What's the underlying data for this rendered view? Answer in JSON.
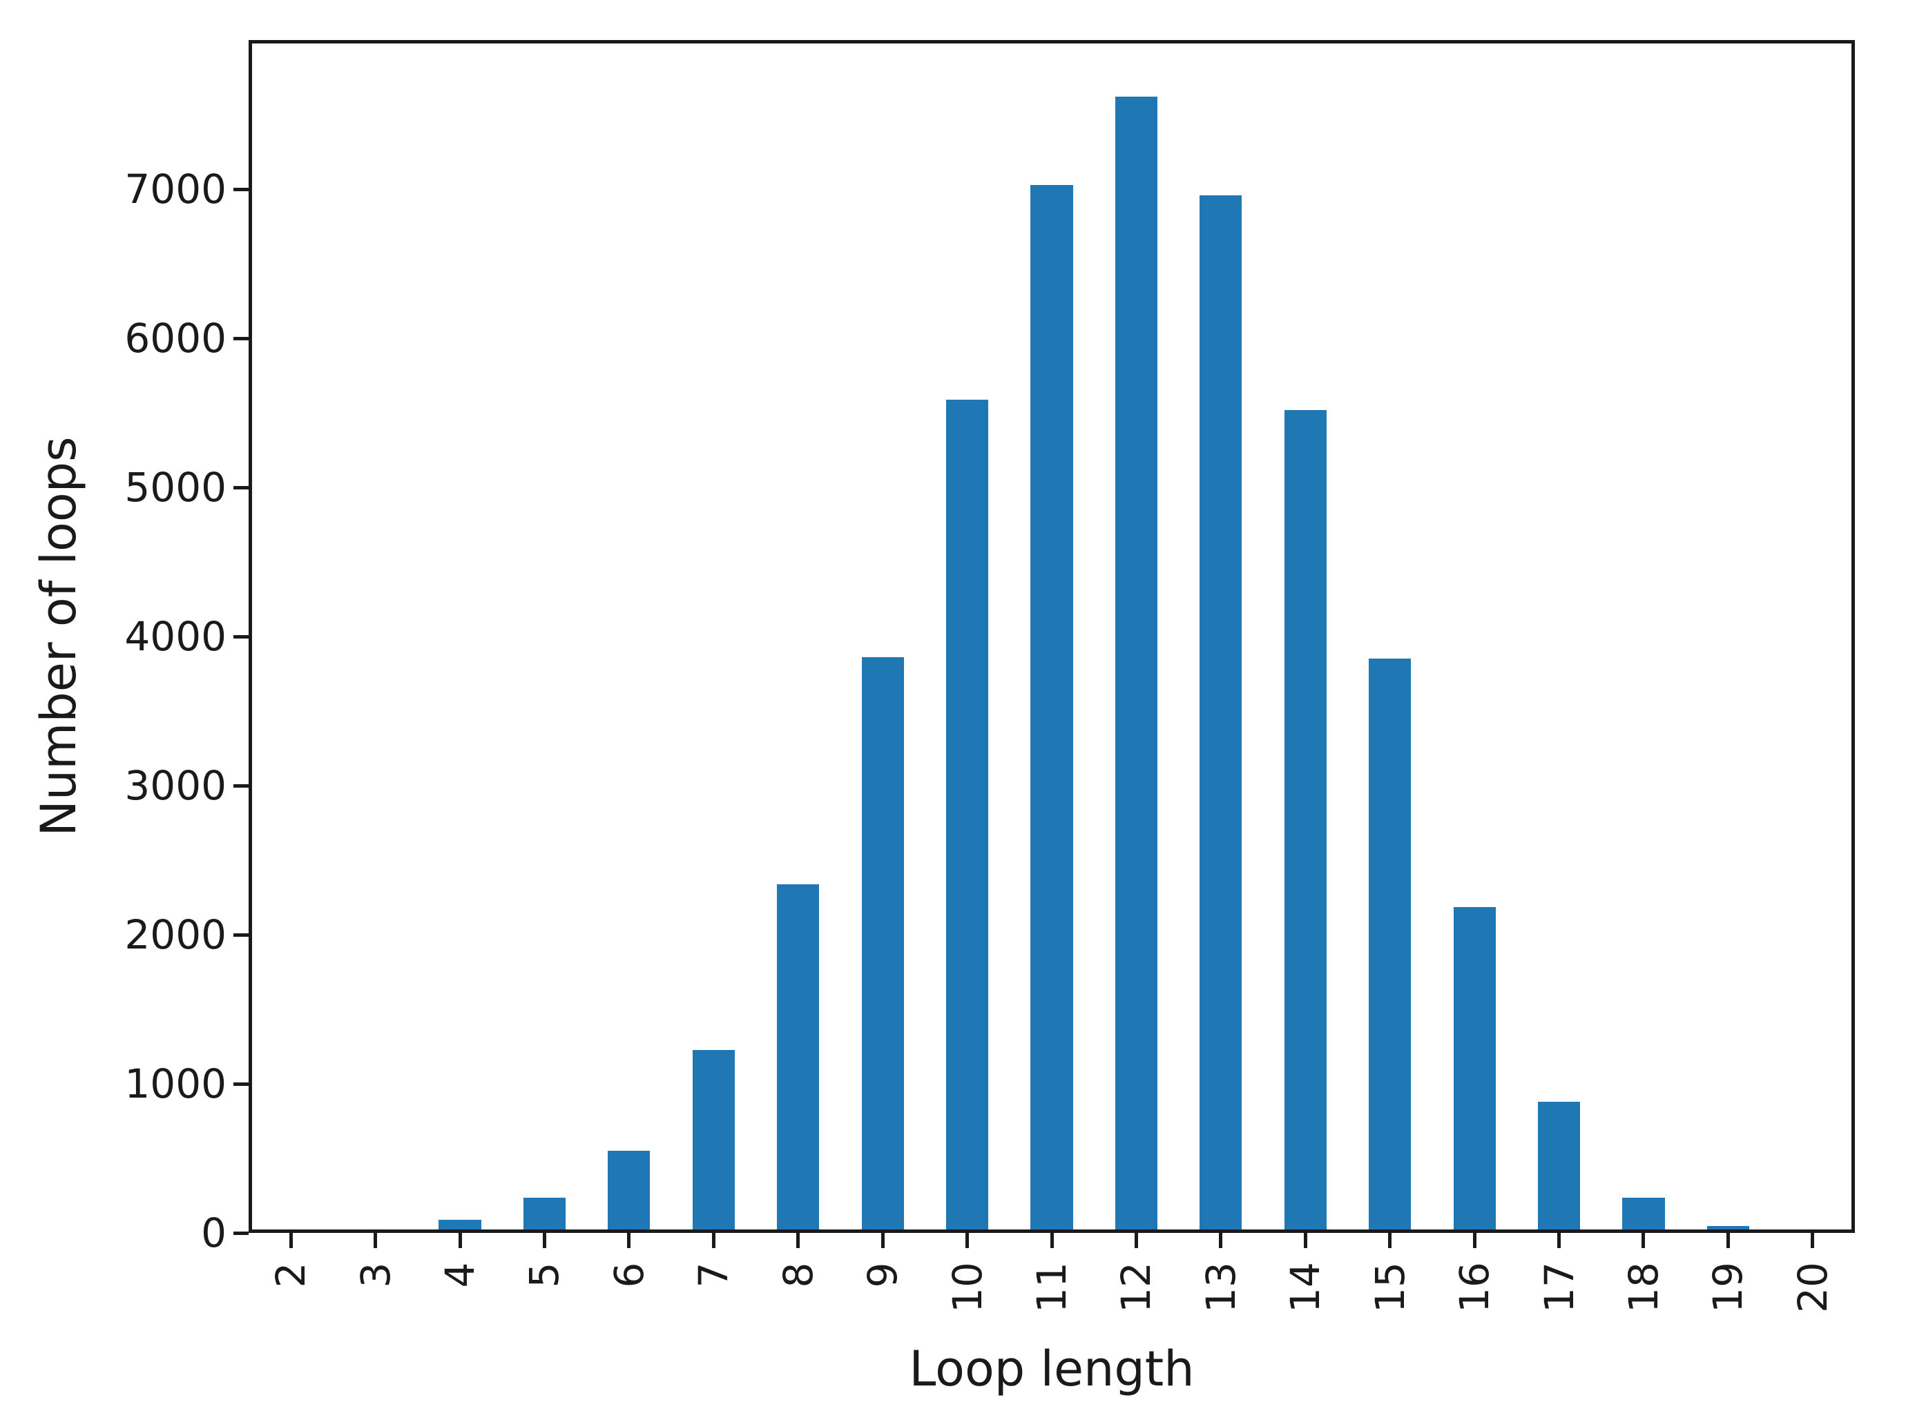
{
  "figure": {
    "background": "#ffffff"
  },
  "chart_data": {
    "type": "bar",
    "title": "",
    "xlabel": "Loop length",
    "ylabel": "Number of loops",
    "categories": [
      2,
      3,
      4,
      5,
      6,
      7,
      8,
      9,
      10,
      11,
      12,
      13,
      14,
      15,
      16,
      17,
      18,
      19,
      20
    ],
    "values": [
      0,
      20,
      90,
      235,
      550,
      1225,
      2340,
      3860,
      5590,
      7030,
      7620,
      6960,
      5520,
      3850,
      2185,
      880,
      235,
      45,
      0
    ],
    "ylim": [
      0,
      8000
    ],
    "yticks": [
      0,
      1000,
      2000,
      3000,
      4000,
      5000,
      6000,
      7000
    ],
    "bar_width_frac": 0.5,
    "bar_color": "#1f77b4",
    "axis_color": "#1a1a1a",
    "text_color": "#1a1a1a",
    "grid": false,
    "legend": null
  }
}
